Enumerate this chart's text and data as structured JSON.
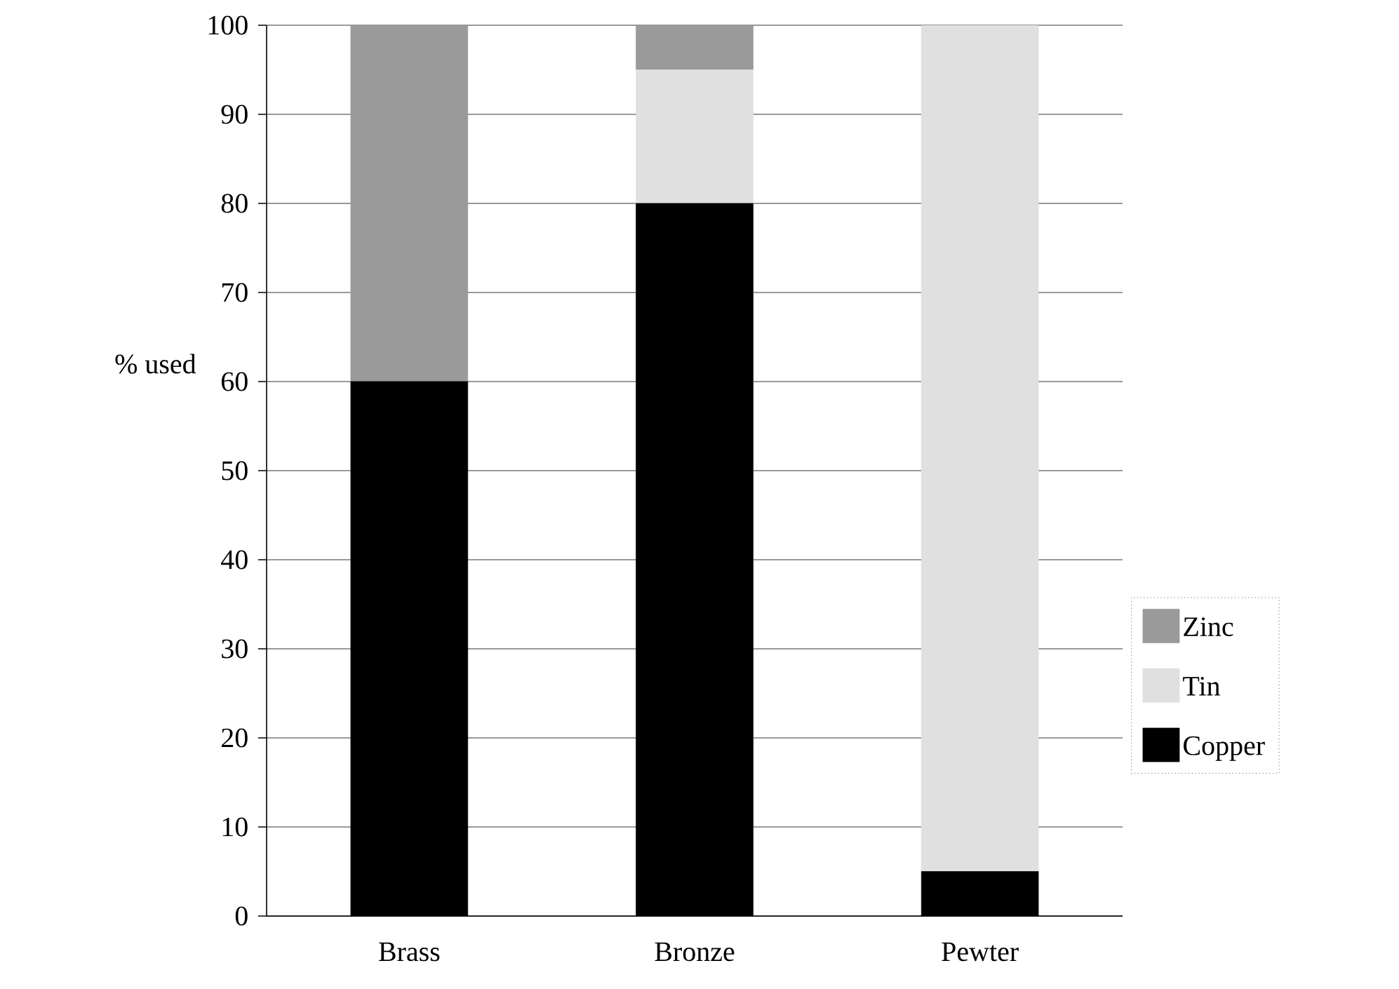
{
  "chart_data": {
    "type": "bar",
    "stacked": true,
    "ylabel": "% used",
    "categories": [
      "Brass",
      "Bronze",
      "Pewter"
    ],
    "series": [
      {
        "name": "Copper",
        "color": "#000000",
        "values": [
          60,
          80,
          5
        ]
      },
      {
        "name": "Tin",
        "color": "#e0e0e0",
        "values": [
          0,
          15,
          95
        ]
      },
      {
        "name": "Zinc",
        "color": "#9a9a9a",
        "values": [
          40,
          5,
          0
        ]
      }
    ],
    "ylim": [
      0,
      100
    ],
    "yticks": [
      0,
      10,
      20,
      30,
      40,
      50,
      60,
      70,
      80,
      90,
      100
    ],
    "grid": "y",
    "legend": "right"
  }
}
